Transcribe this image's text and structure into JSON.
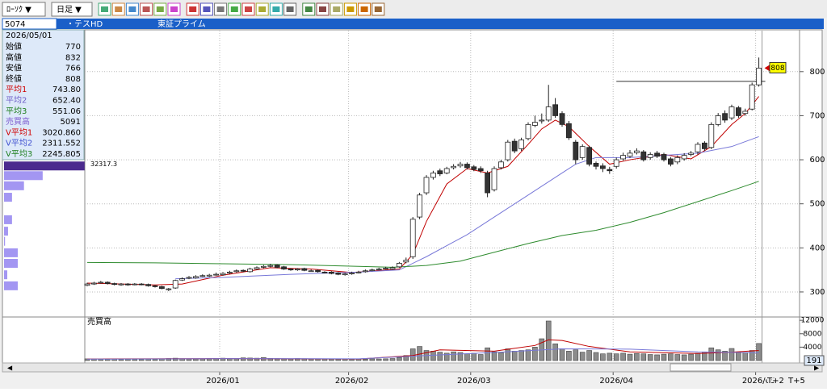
{
  "toolbar": {
    "chart_type": "ﾛｰｿｸ ▼",
    "period": "日足 ▼"
  },
  "header": {
    "code": "5074",
    "name": "・テスHD",
    "market": "東証プライム"
  },
  "info_panel": {
    "date": "2026/05/01",
    "rows": [
      {
        "label": "始値",
        "value": "770",
        "color": "#000000"
      },
      {
        "label": "高値",
        "value": "832",
        "color": "#000000"
      },
      {
        "label": "安値",
        "value": "766",
        "color": "#000000"
      },
      {
        "label": "終値",
        "value": "808",
        "color": "#000000"
      },
      {
        "label": "平均1",
        "value": "743.80",
        "color": "#d00000"
      },
      {
        "label": "平均2",
        "value": "652.40",
        "color": "#7060c8"
      },
      {
        "label": "平均3",
        "value": "551.06",
        "color": "#208020"
      },
      {
        "label": "売買高",
        "value": "5091",
        "color": "#8060d0"
      },
      {
        "label": "V平均1",
        "value": "3020.860",
        "color": "#d00000"
      },
      {
        "label": "V平均2",
        "value": "2311.552",
        "color": "#4050d0"
      },
      {
        "label": "V平均3",
        "value": "2245.805",
        "color": "#208020"
      }
    ]
  },
  "chart_data": {
    "type": "candlestick",
    "categories": [
      null,
      null,
      null,
      null,
      null,
      null,
      null,
      null,
      null,
      null,
      null,
      null,
      null,
      null,
      null,
      null,
      null,
      null,
      null,
      null,
      "2026/01",
      null,
      null,
      null,
      null,
      null,
      null,
      null,
      null,
      null,
      null,
      null,
      null,
      null,
      null,
      null,
      null,
      null,
      null,
      "2026/02",
      null,
      null,
      null,
      null,
      null,
      null,
      null,
      null,
      null,
      null,
      null,
      null,
      null,
      null,
      null,
      null,
      null,
      "2026/03",
      null,
      null,
      null,
      null,
      null,
      null,
      null,
      null,
      null,
      null,
      null,
      null,
      null,
      null,
      null,
      null,
      null,
      null,
      null,
      null,
      "2026/04",
      null,
      null,
      null,
      null,
      null,
      null,
      null,
      null,
      null,
      null,
      null,
      null,
      null,
      null,
      null,
      null,
      null,
      null,
      null,
      null,
      "2026/05"
    ],
    "open": [
      315,
      318,
      321,
      322,
      319,
      316,
      318,
      317,
      318,
      317,
      314,
      312,
      306,
      309,
      327,
      331,
      332,
      336,
      336,
      339,
      339,
      343,
      346,
      349,
      346,
      352,
      356,
      358,
      361,
      357,
      352,
      350,
      353,
      348,
      349,
      345,
      345,
      343,
      339,
      341,
      344,
      346,
      349,
      351,
      353,
      352,
      357,
      368,
      380,
      470,
      525,
      560,
      575,
      570,
      582,
      586,
      590,
      584,
      580,
      570,
      532,
      582,
      600,
      642,
      625,
      648,
      678,
      688,
      690,
      725,
      705,
      682,
      640,
      605,
      628,
      592,
      586,
      578,
      585,
      602,
      608,
      616,
      618,
      605,
      615,
      612,
      602,
      595,
      602,
      612,
      618,
      638,
      628,
      680,
      705,
      695,
      718,
      705,
      715,
      770
    ],
    "high": [
      321,
      323,
      325,
      324,
      321,
      320,
      320,
      320,
      320,
      319,
      316,
      314,
      309,
      328,
      333,
      336,
      338,
      340,
      341,
      344,
      345,
      348,
      351,
      351,
      355,
      358,
      361,
      364,
      363,
      359,
      354,
      354,
      355,
      351,
      351,
      347,
      347,
      345,
      343,
      346,
      348,
      351,
      353,
      355,
      357,
      358,
      368,
      378,
      470,
      525,
      565,
      575,
      580,
      584,
      590,
      595,
      594,
      588,
      585,
      575,
      585,
      600,
      645,
      648,
      650,
      685,
      700,
      705,
      770,
      740,
      710,
      688,
      645,
      635,
      632,
      596,
      592,
      584,
      605,
      616,
      622,
      626,
      622,
      617,
      620,
      616,
      606,
      610,
      615,
      620,
      640,
      642,
      685,
      706,
      712,
      725,
      722,
      716,
      775,
      832
    ],
    "low": [
      313,
      316,
      319,
      317,
      315,
      314,
      314,
      315,
      315,
      312,
      310,
      306,
      302,
      307,
      325,
      329,
      330,
      334,
      334,
      337,
      337,
      341,
      344,
      345,
      344,
      350,
      354,
      356,
      354,
      350,
      348,
      348,
      347,
      346,
      344,
      342,
      340,
      338,
      337,
      339,
      342,
      344,
      347,
      349,
      351,
      350,
      355,
      365,
      375,
      465,
      520,
      555,
      563,
      567,
      578,
      582,
      578,
      574,
      570,
      515,
      528,
      578,
      596,
      615,
      620,
      644,
      674,
      682,
      686,
      695,
      675,
      645,
      590,
      600,
      585,
      578,
      572,
      568,
      580,
      598,
      604,
      612,
      596,
      600,
      604,
      596,
      585,
      590,
      598,
      608,
      612,
      620,
      624,
      676,
      684,
      690,
      695,
      700,
      712,
      766
    ],
    "close": [
      318,
      320,
      322,
      319,
      317,
      318,
      316,
      318,
      317,
      314,
      312,
      308,
      307,
      326,
      330,
      333,
      335,
      337,
      338,
      340,
      342,
      345,
      348,
      347,
      352,
      355,
      358,
      360,
      356,
      352,
      350,
      352,
      349,
      348,
      346,
      344,
      342,
      340,
      341,
      343,
      345,
      348,
      350,
      352,
      354,
      355,
      365,
      372,
      465,
      520,
      560,
      570,
      568,
      580,
      585,
      590,
      582,
      578,
      575,
      525,
      580,
      595,
      640,
      620,
      645,
      680,
      685,
      690,
      720,
      700,
      680,
      650,
      600,
      630,
      590,
      585,
      580,
      575,
      600,
      610,
      615,
      620,
      600,
      612,
      608,
      600,
      590,
      605,
      610,
      615,
      635,
      625,
      680,
      700,
      690,
      720,
      700,
      710,
      770,
      808
    ],
    "ylim": [
      245,
      893
    ],
    "yticks": [
      300,
      400,
      500,
      600,
      700,
      800
    ],
    "grid": true,
    "series": [
      {
        "color": "#c00000",
        "x": [
          0,
          10,
          14,
          20,
          27,
          33,
          39,
          46,
          48,
          50,
          53,
          56,
          59,
          62,
          65,
          67,
          69,
          71,
          74,
          77,
          80,
          85,
          89,
          92,
          95,
          97,
          99
        ],
        "values": [
          320,
          316,
          318,
          338,
          355,
          352,
          344,
          352,
          385,
          460,
          545,
          580,
          570,
          585,
          635,
          670,
          690,
          675,
          630,
          590,
          600,
          612,
          602,
          630,
          680,
          705,
          743.8
        ]
      },
      {
        "color": "#7878d8",
        "x": [
          13,
          20,
          30,
          40,
          46,
          50,
          53,
          56,
          60,
          65,
          70,
          72,
          75,
          80,
          85,
          90,
          95,
          99
        ],
        "values": [
          330,
          333,
          340,
          345,
          350,
          380,
          405,
          430,
          470,
          520,
          570,
          590,
          605,
          605,
          610,
          615,
          630,
          652.4
        ]
      },
      {
        "color": "#2e8b2e",
        "x": [
          0,
          10,
          20,
          30,
          40,
          45,
          50,
          55,
          60,
          65,
          70,
          75,
          80,
          85,
          90,
          95,
          99
        ],
        "values": [
          367,
          366,
          364,
          362,
          358,
          356,
          360,
          370,
          390,
          410,
          428,
          440,
          458,
          480,
          505,
          530,
          551.06
        ]
      }
    ],
    "reference_line": {
      "value": 778,
      "from": 78,
      "to": 99
    },
    "volume": {
      "label": "売買高",
      "color": "#8c8c8c",
      "values": [
        500,
        450,
        400,
        380,
        420,
        350,
        400,
        380,
        360,
        420,
        380,
        450,
        600,
        700,
        550,
        500,
        480,
        520,
        600,
        650,
        700,
        650,
        600,
        800,
        750,
        700,
        900,
        650,
        600,
        550,
        500,
        600,
        550,
        500,
        450,
        480,
        420,
        400,
        450,
        400,
        450,
        420,
        500,
        480,
        520,
        600,
        900,
        1500,
        3500,
        4200,
        3000,
        2800,
        2500,
        2200,
        2600,
        2400,
        2000,
        2200,
        1800,
        3800,
        2600,
        2400,
        3500,
        2800,
        3000,
        3200,
        4000,
        6500,
        11800,
        5000,
        3500,
        2800,
        3200,
        2500,
        3000,
        2400,
        2000,
        2200,
        2000,
        2200,
        1900,
        2100,
        2000,
        1800,
        1700,
        1900,
        2000,
        1800,
        1700,
        1900,
        2200,
        2500,
        3800,
        3200,
        2800,
        3600,
        2600,
        2400,
        3000,
        5091
      ],
      "ylim": [
        0,
        13000
      ],
      "yticks": [
        4000,
        8000,
        12000
      ],
      "series": [
        {
          "color": "#c00000",
          "x": [
            0,
            20,
            40,
            48,
            52,
            60,
            66,
            68,
            70,
            74,
            80,
            90,
            95,
            99
          ],
          "values": [
            450,
            600,
            450,
            1500,
            3200,
            2800,
            4500,
            6200,
            6000,
            4200,
            2600,
            2100,
            2500,
            3020.86
          ]
        },
        {
          "color": "#7878d8",
          "x": [
            0,
            20,
            40,
            50,
            60,
            70,
            80,
            90,
            99
          ],
          "values": [
            420,
            560,
            520,
            1500,
            2400,
            3500,
            3400,
            2600,
            2311.552
          ]
        }
      ]
    },
    "price_volume": {
      "color": "#a396f2",
      "highlight_color": "#4b2a8e",
      "xlim": [
        0,
        32400
      ],
      "prices": [
        585,
        563,
        540,
        514,
        463,
        437,
        414,
        388,
        364,
        338,
        313
      ],
      "values": [
        32317.3,
        15500,
        8000,
        3200,
        3200,
        1600,
        400,
        5500,
        5500,
        1300,
        5500
      ]
    }
  },
  "footer": {
    "t2": "T+2",
    "t5": "T+5",
    "volume_box": "191"
  }
}
